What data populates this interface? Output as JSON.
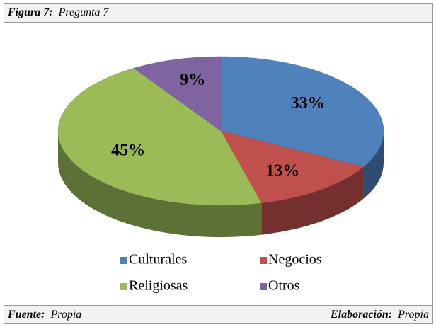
{
  "caption": {
    "label": "Figura 7:",
    "text": "Pregunta 7"
  },
  "footer": {
    "source_label": "Fuente:",
    "source": "Propia",
    "author_label": "Elaboración:",
    "author": "Propia"
  },
  "chart_data": {
    "type": "pie",
    "categories": [
      "Culturales",
      "Negocios",
      "Religiosas",
      "Otros"
    ],
    "values": [
      33,
      13,
      45,
      9
    ],
    "value_labels": [
      "33%",
      "13%",
      "45%",
      "9%"
    ],
    "colors": [
      "#4f81bd",
      "#c0504d",
      "#9bbb59",
      "#8064a2"
    ],
    "legend": "bottom"
  }
}
